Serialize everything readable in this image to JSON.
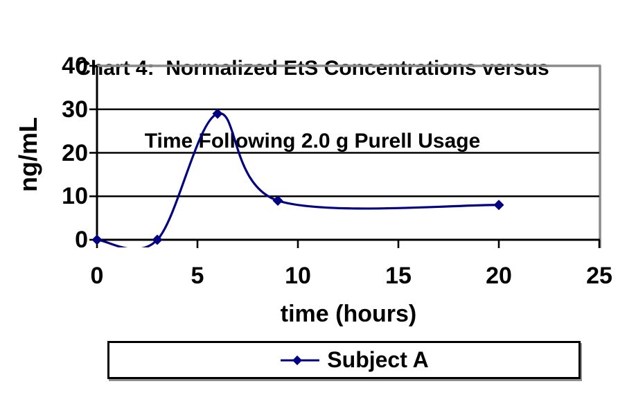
{
  "title": {
    "line1": "Chart 4:  Normalized EtS Concentrations versus",
    "line2": "Time Following 2.0 g Purell Usage"
  },
  "y_axis": {
    "label": "ng/mL",
    "ticks": [
      0,
      10,
      20,
      30,
      40
    ],
    "range": [
      0,
      40
    ]
  },
  "x_axis": {
    "label": "time (hours)",
    "ticks": [
      0,
      5,
      10,
      15,
      20,
      25
    ],
    "range": [
      0,
      25
    ]
  },
  "legend": {
    "position": "bottom",
    "entries": [
      {
        "label": "Subject A",
        "marker": "diamond-line",
        "color": "#000080"
      }
    ]
  },
  "colors": {
    "series": "#000080",
    "gridline": "#000000",
    "axis": "#000000",
    "plot_border": "#8a8a8a",
    "text": "#000000",
    "background": "#ffffff"
  },
  "chart_data": {
    "type": "line",
    "title": "Chart 4: Normalized EtS Concentrations versus Time Following 2.0 g Purell Usage",
    "xlabel": "time (hours)",
    "ylabel": "ng/mL",
    "xlim": [
      0,
      25
    ],
    "ylim": [
      0,
      40
    ],
    "x_tick_step": 5,
    "y_tick_step": 10,
    "grid": "horizontal",
    "line_style": "smooth",
    "legend_position": "bottom",
    "series": [
      {
        "name": "Subject A",
        "color": "#000080",
        "marker": "diamond",
        "x": [
          0,
          3,
          6,
          9,
          20
        ],
        "y": [
          0,
          0,
          29,
          9,
          8
        ]
      }
    ]
  }
}
